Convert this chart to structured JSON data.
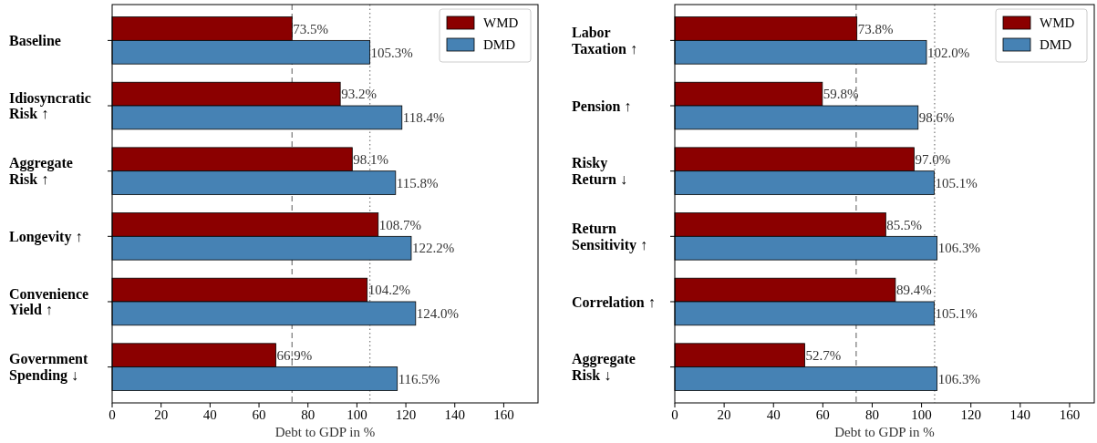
{
  "chart_data": [
    {
      "type": "bar",
      "orientation": "horizontal",
      "xlabel": "Debt to GDP in %",
      "categories": [
        "Baseline",
        "Idiosyncratic\nRisk ↑",
        "Aggregate\nRisk ↑",
        "Longevity ↑",
        "Convenience\nYield ↑",
        "Government\nSpending ↓"
      ],
      "series": [
        {
          "name": "WMD",
          "color": "#8b0000",
          "values": [
            73.5,
            93.2,
            98.1,
            108.7,
            104.2,
            66.9
          ],
          "value_labels": [
            "73.5%",
            "93.2%",
            "98.1%",
            "108.7%",
            "104.2%",
            "66.9%"
          ]
        },
        {
          "name": "DMD",
          "color": "#4682b4",
          "values": [
            105.3,
            118.4,
            115.8,
            122.2,
            124.0,
            116.5
          ],
          "value_labels": [
            "105.3%",
            "118.4%",
            "115.8%",
            "122.2%",
            "124.0%",
            "116.5%"
          ]
        }
      ],
      "xlim": [
        0,
        174
      ],
      "xticks": [
        0,
        20,
        40,
        60,
        80,
        100,
        120,
        140,
        160
      ],
      "legend": "top right",
      "ref_lines": [
        {
          "axis": "x",
          "value": 73.5,
          "color": "#808080",
          "line_style": "dashed"
        },
        {
          "axis": "x",
          "value": 105.3,
          "color": "#808080",
          "line_style": "dotted"
        }
      ]
    },
    {
      "type": "bar",
      "orientation": "horizontal",
      "xlabel": "Debt to GDP in %",
      "categories": [
        "Labor\nTaxation ↑",
        "Pension ↑",
        "Risky\nReturn ↓",
        "Return\nSensitivity ↑",
        "Correlation ↑",
        "Aggregate\nRisk ↓"
      ],
      "series": [
        {
          "name": "WMD",
          "color": "#8b0000",
          "values": [
            73.8,
            59.8,
            97.0,
            85.5,
            89.4,
            52.7
          ],
          "value_labels": [
            "73.8%",
            "59.8%",
            "97.0%",
            "85.5%",
            "89.4%",
            "52.7%"
          ]
        },
        {
          "name": "DMD",
          "color": "#4682b4",
          "values": [
            102.0,
            98.6,
            105.1,
            106.3,
            105.1,
            106.3
          ],
          "value_labels": [
            "102.0%",
            "98.6%",
            "105.1%",
            "106.3%",
            "105.1%",
            "106.3%"
          ]
        }
      ],
      "xlim": [
        0,
        170
      ],
      "xticks": [
        0,
        20,
        40,
        60,
        80,
        100,
        120,
        140,
        160
      ],
      "legend": "top right",
      "ref_lines": [
        {
          "axis": "x",
          "value": 73.5,
          "color": "#808080",
          "line_style": "dashed"
        },
        {
          "axis": "x",
          "value": 105.3,
          "color": "#808080",
          "line_style": "dotted"
        }
      ]
    }
  ]
}
